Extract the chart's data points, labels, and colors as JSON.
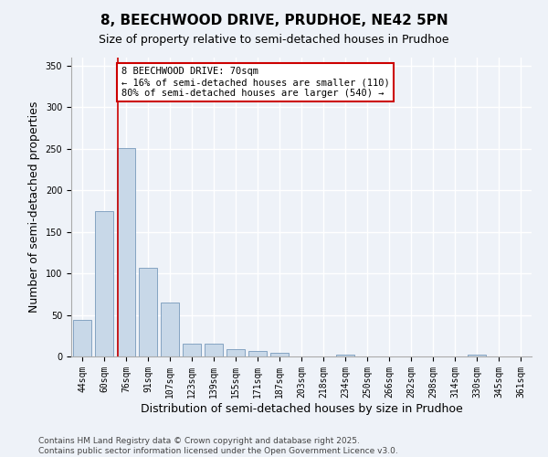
{
  "title_line1": "8, BEECHWOOD DRIVE, PRUDHOE, NE42 5PN",
  "title_line2": "Size of property relative to semi-detached houses in Prudhoe",
  "xlabel": "Distribution of semi-detached houses by size in Prudhoe",
  "ylabel": "Number of semi-detached properties",
  "categories": [
    "44sqm",
    "60sqm",
    "76sqm",
    "91sqm",
    "107sqm",
    "123sqm",
    "139sqm",
    "155sqm",
    "171sqm",
    "187sqm",
    "203sqm",
    "218sqm",
    "234sqm",
    "250sqm",
    "266sqm",
    "282sqm",
    "298sqm",
    "314sqm",
    "330sqm",
    "345sqm",
    "361sqm"
  ],
  "values": [
    44,
    175,
    251,
    107,
    65,
    15,
    15,
    9,
    7,
    4,
    0,
    0,
    2,
    0,
    0,
    0,
    0,
    0,
    2,
    0,
    0
  ],
  "bar_color": "#c8d8e8",
  "bar_edge_color": "#7799bb",
  "background_color": "#eef2f8",
  "grid_color": "#ffffff",
  "annotation_box_text": "8 BEECHWOOD DRIVE: 70sqm\n← 16% of semi-detached houses are smaller (110)\n80% of semi-detached houses are larger (540) →",
  "annotation_box_color": "#ffffff",
  "annotation_box_edge_color": "#cc0000",
  "annotation_line_color": "#cc0000",
  "ylim": [
    0,
    360
  ],
  "yticks": [
    0,
    50,
    100,
    150,
    200,
    250,
    300,
    350
  ],
  "footer_text": "Contains HM Land Registry data © Crown copyright and database right 2025.\nContains public sector information licensed under the Open Government Licence v3.0.",
  "title_fontsize": 11,
  "subtitle_fontsize": 9,
  "axis_label_fontsize": 9,
  "tick_fontsize": 7,
  "footer_fontsize": 6.5,
  "annotation_fontsize": 7.5
}
